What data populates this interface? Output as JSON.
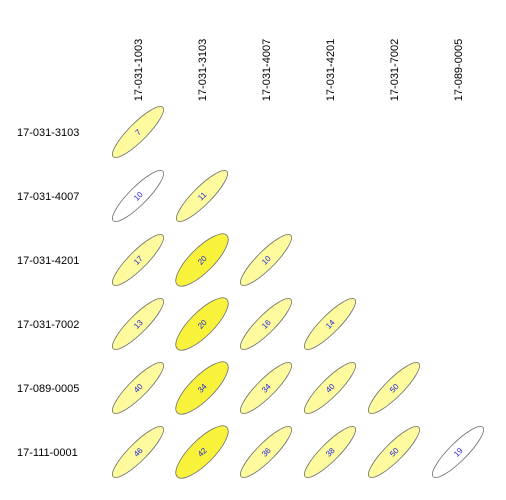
{
  "chart_data": {
    "type": "heatmap",
    "title": "",
    "col_labels": [
      "17-031-1003",
      "17-031-3103",
      "17-031-4007",
      "17-031-4201",
      "17-031-7002",
      "17-089-0005"
    ],
    "row_labels": [
      "17-031-3103",
      "17-031-4007",
      "17-031-4201",
      "17-031-7002",
      "17-089-0005",
      "17-111-0001"
    ],
    "cells": [
      {
        "row": 0,
        "col": 0,
        "value": "7",
        "fill": "#fdfb9e"
      },
      {
        "row": 1,
        "col": 0,
        "value": "10",
        "fill": "#ffffff"
      },
      {
        "row": 1,
        "col": 1,
        "value": "11",
        "fill": "#fdfb9e"
      },
      {
        "row": 2,
        "col": 0,
        "value": "17",
        "fill": "#fdfb9e"
      },
      {
        "row": 2,
        "col": 1,
        "value": "20",
        "fill": "#f9f23a"
      },
      {
        "row": 2,
        "col": 2,
        "value": "10",
        "fill": "#fdfb9e"
      },
      {
        "row": 3,
        "col": 0,
        "value": "13",
        "fill": "#fdfb9e"
      },
      {
        "row": 3,
        "col": 1,
        "value": "20",
        "fill": "#f9f23a"
      },
      {
        "row": 3,
        "col": 2,
        "value": "16",
        "fill": "#fdfb9e"
      },
      {
        "row": 3,
        "col": 3,
        "value": "14",
        "fill": "#fdfb9e"
      },
      {
        "row": 4,
        "col": 0,
        "value": "40",
        "fill": "#fdfb9e"
      },
      {
        "row": 4,
        "col": 1,
        "value": "34",
        "fill": "#f9f23a"
      },
      {
        "row": 4,
        "col": 2,
        "value": "34",
        "fill": "#fdfb9e"
      },
      {
        "row": 4,
        "col": 3,
        "value": "40",
        "fill": "#fdfb9e"
      },
      {
        "row": 4,
        "col": 4,
        "value": "50",
        "fill": "#fdfb9e"
      },
      {
        "row": 5,
        "col": 0,
        "value": "46",
        "fill": "#fdfb9e"
      },
      {
        "row": 5,
        "col": 1,
        "value": "42",
        "fill": "#f9f23a"
      },
      {
        "row": 5,
        "col": 2,
        "value": "36",
        "fill": "#fdfb9e"
      },
      {
        "row": 5,
        "col": 3,
        "value": "38",
        "fill": "#fdfb9e"
      },
      {
        "row": 5,
        "col": 4,
        "value": "50",
        "fill": "#fdfb9e"
      },
      {
        "row": 5,
        "col": 5,
        "value": "19",
        "fill": "#ffffff"
      }
    ]
  }
}
